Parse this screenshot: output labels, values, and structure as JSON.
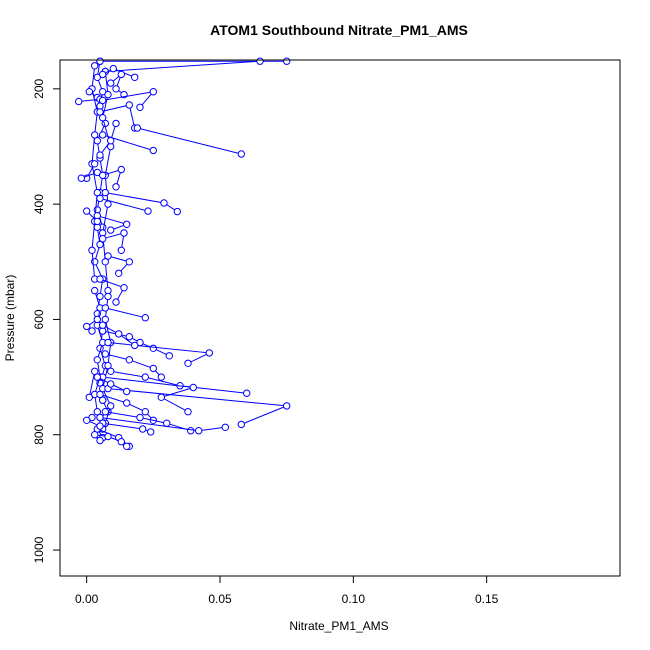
{
  "chart_data": {
    "type": "scatter",
    "mode": "lines+markers",
    "title": "ATOM1 Southbound Nitrate_PM1_AMS",
    "xlabel": "Nitrate_PM1_AMS",
    "ylabel": "Pressure (mbar)",
    "xlim": [
      -0.01,
      0.2
    ],
    "ylim": [
      1045,
      150
    ],
    "y_reversed": true,
    "xticks": [
      0.0,
      0.05,
      0.1,
      0.15
    ],
    "xtick_labels": [
      "0.00",
      "0.05",
      "0.10",
      "0.15"
    ],
    "yticks": [
      200,
      400,
      600,
      800,
      1000
    ],
    "ytick_labels": [
      "200",
      "400",
      "600",
      "800",
      "1000"
    ],
    "grid": false,
    "legend": "none",
    "series": [
      {
        "color": "#0000ff",
        "marker": "open-circle",
        "segments": [
          {
            "x": [
              0.005,
              0.004,
              0.006,
              0.005,
              0.007,
              0.004,
              0.005,
              0.006,
              0.005,
              0.004,
              0.006
            ],
            "y": [
              152,
              180,
              205,
              230,
              260,
              290,
              320,
              350,
              380,
              410,
              440
            ]
          },
          {
            "x": [
              0.004,
              0.005,
              0.003,
              0.006,
              0.005,
              0.004,
              0.006,
              0.005,
              0.007,
              0.005,
              0.006
            ],
            "y": [
              440,
              470,
              500,
              530,
              560,
              590,
              620,
              650,
              680,
              710,
              740
            ]
          },
          {
            "x": [
              0.006,
              0.008,
              0.005,
              0.007,
              0.006,
              0.004,
              0.006,
              0.005
            ],
            "y": [
              740,
              760,
              770,
              780,
              790,
              800,
              805,
              810
            ]
          },
          {
            "x": [
              0.003,
              0.002,
              0.004,
              0.003,
              0.002,
              0.004,
              0.003,
              0.002,
              0.003
            ],
            "y": [
              160,
              200,
              240,
              280,
              330,
              380,
              430,
              480,
              530
            ]
          },
          {
            "x": [
              0.007,
              0.008,
              0.006,
              0.009,
              0.007,
              0.008,
              0.006,
              0.007,
              0.008
            ],
            "y": [
              170,
              210,
              250,
              300,
              350,
              400,
              450,
              500,
              550
            ]
          },
          {
            "x": [
              0.003,
              0.005,
              0.004,
              0.006,
              0.004,
              0.005,
              0.003,
              0.004
            ],
            "y": [
              550,
              580,
              610,
              640,
              670,
              700,
              730,
              760
            ]
          },
          {
            "x": [
              0.008,
              0.007,
              0.009,
              0.008,
              0.006,
              0.009,
              0.007
            ],
            "y": [
              560,
              600,
              640,
              680,
              720,
              750,
              780
            ]
          },
          {
            "x": [
              0.005,
              0.075
            ],
            "y": [
              152,
              152
            ]
          },
          {
            "x": [
              0.007,
              0.065
            ],
            "y": [
              170,
              152
            ]
          },
          {
            "x": [
              0.006,
              0.01,
              0.018
            ],
            "y": [
              175,
              165,
              180
            ]
          },
          {
            "x": [
              0.009,
              0.013,
              0.011,
              0.014
            ],
            "y": [
              190,
              175,
              200,
              210
            ]
          },
          {
            "x": [
              0.004,
              0.001
            ],
            "y": [
              215,
              205
            ]
          },
          {
            "x": [
              -0.003,
              0.005
            ],
            "y": [
              222,
              218
            ]
          },
          {
            "x": [
              0.006,
              0.025,
              0.02
            ],
            "y": [
              220,
              205,
              232
            ]
          },
          {
            "x": [
              0.005,
              0.016,
              0.018
            ],
            "y": [
              240,
              228,
              268
            ]
          },
          {
            "x": [
              0.019,
              0.058
            ],
            "y": [
              268,
              313
            ]
          },
          {
            "x": [
              0.006,
              0.025
            ],
            "y": [
              280,
              307
            ]
          },
          {
            "x": [
              0.003,
              0.0
            ],
            "y": [
              330,
              355
            ]
          },
          {
            "x": [
              -0.002,
              0.004
            ],
            "y": [
              355,
              345
            ]
          },
          {
            "x": [
              0.006,
              0.013,
              0.011
            ],
            "y": [
              350,
              340,
              370
            ]
          },
          {
            "x": [
              0.007,
              0.029,
              0.034
            ],
            "y": [
              380,
              398,
              413
            ]
          },
          {
            "x": [
              0.005,
              0.023
            ],
            "y": [
              390,
              412
            ]
          },
          {
            "x": [
              0.004,
              0.015,
              0.009
            ],
            "y": [
              420,
              435,
              445
            ]
          },
          {
            "x": [
              0.0,
              0.004
            ],
            "y": [
              412,
              430
            ]
          },
          {
            "x": [
              0.006,
              0.014,
              0.013
            ],
            "y": [
              460,
              450,
              480
            ]
          },
          {
            "x": [
              0.008,
              0.016,
              0.012
            ],
            "y": [
              490,
              500,
              520
            ]
          },
          {
            "x": [
              0.005,
              0.014,
              0.011
            ],
            "y": [
              530,
              545,
              570
            ]
          },
          {
            "x": [
              0.007,
              0.022
            ],
            "y": [
              580,
              597
            ]
          },
          {
            "x": [
              0.004,
              0.0,
              0.002
            ],
            "y": [
              600,
              612,
              620
            ]
          },
          {
            "x": [
              0.006,
              0.016,
              0.02,
              0.025,
              0.031
            ],
            "y": [
              620,
              630,
              640,
              650,
              663
            ]
          },
          {
            "x": [
              0.008,
              0.046,
              0.038
            ],
            "y": [
              640,
              658,
              676
            ]
          },
          {
            "x": [
              0.007,
              0.016,
              0.025,
              0.028
            ],
            "y": [
              660,
              670,
              685,
              700
            ]
          },
          {
            "x": [
              0.009,
              0.022,
              0.035,
              0.06
            ],
            "y": [
              690,
              700,
              715,
              728
            ]
          },
          {
            "x": [
              0.006,
              0.04,
              0.028,
              0.038
            ],
            "y": [
              700,
              718,
              735,
              760
            ]
          },
          {
            "x": [
              0.008,
              0.075,
              0.058
            ],
            "y": [
              720,
              750,
              782
            ]
          },
          {
            "x": [
              0.005,
              0.015,
              0.022,
              0.025
            ],
            "y": [
              730,
              745,
              760,
              775
            ]
          },
          {
            "x": [
              0.007,
              0.02,
              0.03,
              0.039
            ],
            "y": [
              760,
              770,
              780,
              793
            ]
          },
          {
            "x": [
              0.005,
              0.042,
              0.052
            ],
            "y": [
              770,
              793,
              787
            ]
          },
          {
            "x": [
              0.006,
              0.021,
              0.024
            ],
            "y": [
              780,
              790,
              795
            ]
          },
          {
            "x": [
              0.004,
              0.012,
              0.016
            ],
            "y": [
              790,
              805,
              820
            ]
          },
          {
            "x": [
              0.003,
              0.008,
              0.013,
              0.015
            ],
            "y": [
              800,
              803,
              812,
              820
            ]
          },
          {
            "x": [
              0.002,
              0.0,
              0.005
            ],
            "y": [
              770,
              775,
              785
            ]
          },
          {
            "x": [
              0.003,
              0.001
            ],
            "y": [
              690,
              735
            ]
          },
          {
            "x": [
              0.004,
              0.009,
              0.015
            ],
            "y": [
              700,
              712,
              725
            ]
          },
          {
            "x": [
              0.006,
              0.012,
              0.018
            ],
            "y": [
              610,
              625,
              645
            ]
          },
          {
            "x": [
              0.005,
              0.009,
              0.011
            ],
            "y": [
              315,
              290,
              260
            ]
          }
        ]
      }
    ]
  }
}
